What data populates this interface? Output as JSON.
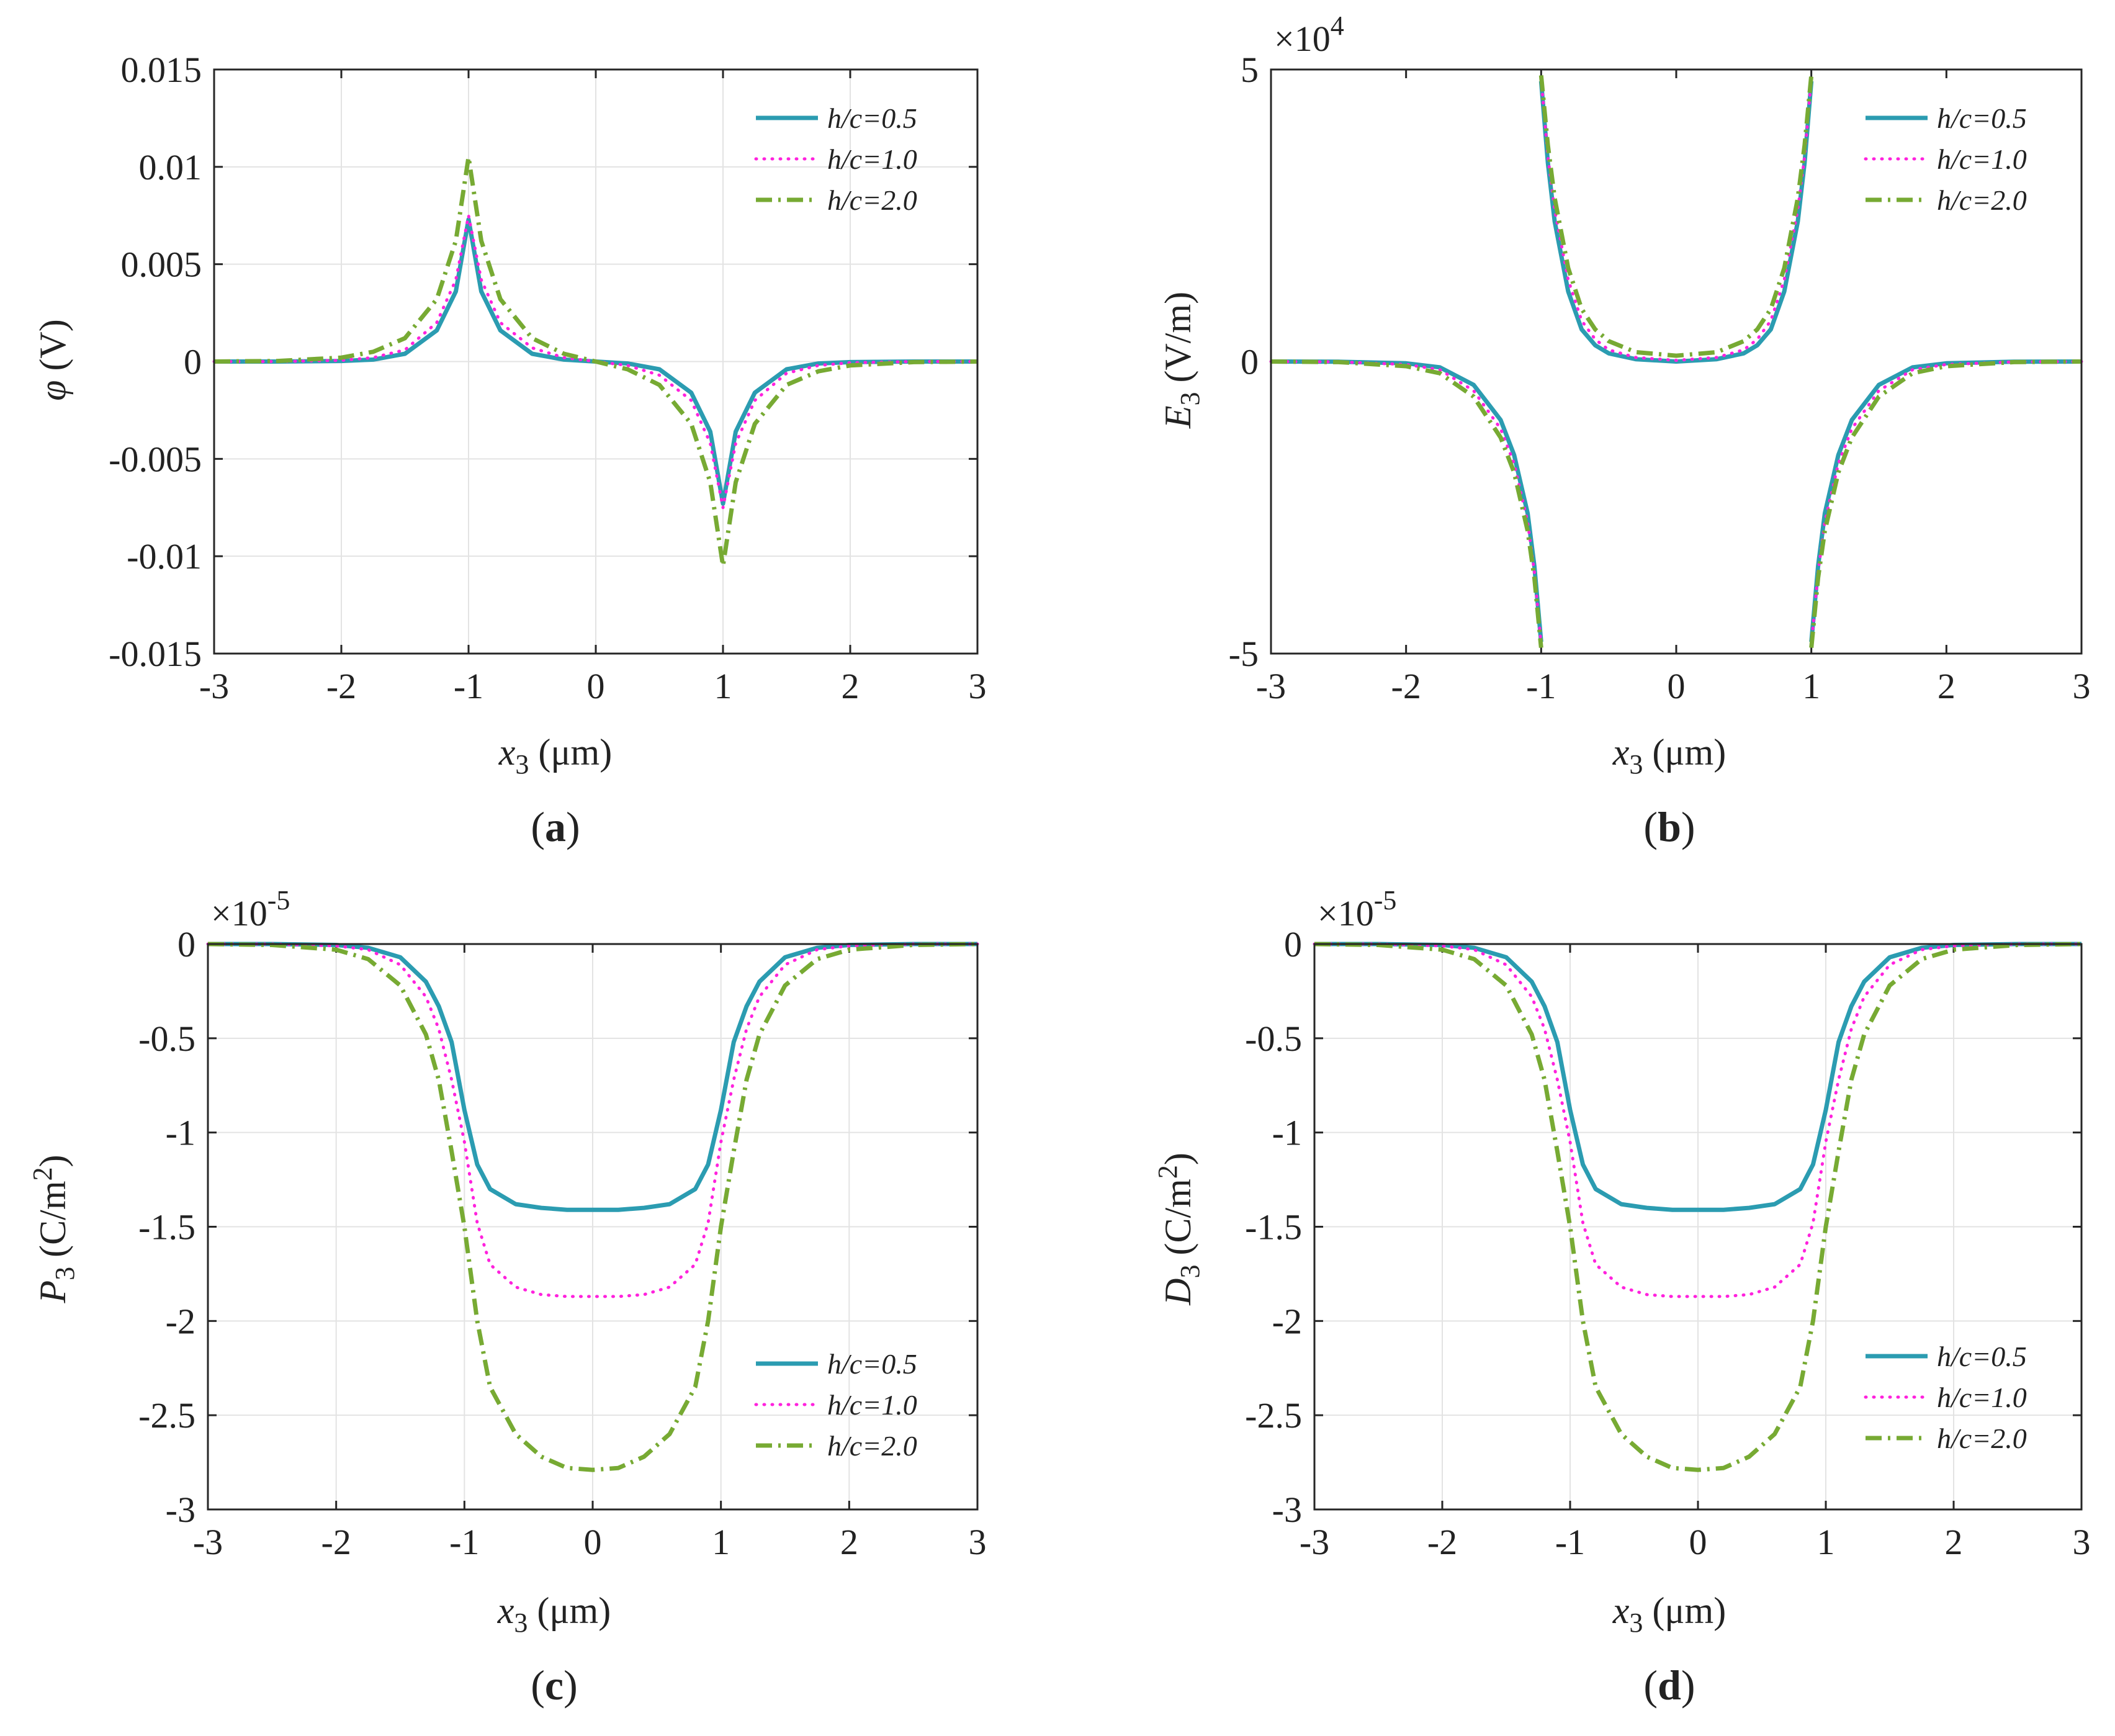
{
  "figure": {
    "legend_labels": [
      "h/c=0.5",
      "h/c=1.0",
      "h/c=2.0"
    ],
    "series_colors": [
      "#2B9CB1",
      "#FF22DD",
      "#77AA33"
    ],
    "series_styles": [
      "solid",
      "dotted",
      "dashdot"
    ]
  },
  "chart_data": [
    {
      "id": "a",
      "type": "line",
      "caption": "(a)",
      "title": "",
      "xlabel": "x3 (μm)",
      "ylabel": "φ (V)",
      "xlim": [
        -3,
        3
      ],
      "ylim": [
        -0.015,
        0.015
      ],
      "xticks": [
        -3,
        -2,
        -1,
        0,
        1,
        2,
        3
      ],
      "xtick_labels": [
        "-3",
        "-2",
        "-1",
        "0",
        "1",
        "2",
        "3"
      ],
      "yticks": [
        -0.015,
        -0.01,
        -0.005,
        0,
        0.005,
        0.01,
        0.015
      ],
      "ytick_labels": [
        "-0.015",
        "-0.01",
        "-0.005",
        "0",
        "0.005",
        "0.01",
        "0.015"
      ],
      "exponent": "",
      "legend_position": "top-right",
      "grid": true,
      "x": [
        -3.0,
        -2.5,
        -2.0,
        -1.75,
        -1.5,
        -1.25,
        -1.1,
        -1.0,
        -0.9,
        -0.75,
        -0.5,
        -0.25,
        0.0,
        0.25,
        0.5,
        0.75,
        0.9,
        1.0,
        1.1,
        1.25,
        1.5,
        1.75,
        2.0,
        2.5,
        3.0
      ],
      "series": [
        {
          "name": "h/c=0.5",
          "values": [
            0,
            0,
            3e-05,
            0.0001,
            0.0004,
            0.0016,
            0.0036,
            0.0073,
            0.0036,
            0.0016,
            0.0004,
            0.0001,
            0,
            -0.0001,
            -0.0004,
            -0.0016,
            -0.0036,
            -0.0073,
            -0.0036,
            -0.0016,
            -0.0004,
            -0.0001,
            -3e-05,
            0,
            0
          ]
        },
        {
          "name": "h/c=1.0",
          "values": [
            0,
            0,
            6e-05,
            0.0002,
            0.0006,
            0.002,
            0.0042,
            0.0075,
            0.0042,
            0.002,
            0.0007,
            0.0002,
            0,
            -0.0002,
            -0.0007,
            -0.002,
            -0.0042,
            -0.0075,
            -0.0042,
            -0.002,
            -0.0006,
            -0.0002,
            -6e-05,
            0,
            0
          ]
        },
        {
          "name": "h/c=2.0",
          "values": [
            0,
            3e-05,
            0.0002,
            0.0005,
            0.0012,
            0.0032,
            0.0062,
            0.0105,
            0.0062,
            0.0032,
            0.0012,
            0.0004,
            0,
            -0.0004,
            -0.0012,
            -0.0032,
            -0.0062,
            -0.0105,
            -0.0062,
            -0.0032,
            -0.0012,
            -0.0005,
            -0.0002,
            -3e-05,
            0
          ]
        }
      ]
    },
    {
      "id": "b",
      "type": "line",
      "caption": "(b)",
      "title": "",
      "xlabel": "x3 (μm)",
      "ylabel": "E3 (V/m)",
      "xlim": [
        -3,
        3
      ],
      "ylim": [
        -5,
        5
      ],
      "xticks": [
        -3,
        -2,
        -1,
        0,
        1,
        2,
        3
      ],
      "xtick_labels": [
        "-3",
        "-2",
        "-1",
        "0",
        "1",
        "2",
        "3"
      ],
      "yticks": [
        -5,
        0,
        5
      ],
      "ytick_labels": [
        "-5",
        "0",
        "5"
      ],
      "exponent": "×10^4",
      "legend_position": "top-right",
      "grid": false,
      "segments_x": [
        [
          -3.0,
          -2.5,
          -2.0,
          -1.75,
          -1.5,
          -1.3,
          -1.2,
          -1.1,
          -1.05,
          -1.0
        ],
        [
          -1.0,
          -0.95,
          -0.9,
          -0.8,
          -0.7,
          -0.6,
          -0.5,
          -0.3,
          0.0,
          0.3,
          0.5,
          0.6,
          0.7,
          0.8,
          0.9,
          0.95,
          1.0
        ],
        [
          1.0,
          1.05,
          1.1,
          1.2,
          1.3,
          1.5,
          1.75,
          2.0,
          2.5,
          3.0
        ]
      ],
      "series": [
        {
          "name": "h/c=0.5",
          "segments": [
            [
              0,
              -0.003,
              -0.03,
              -0.1,
              -0.4,
              -1.0,
              -1.6,
              -2.6,
              -3.5,
              -4.8
            ],
            [
              4.8,
              3.4,
              2.4,
              1.2,
              0.55,
              0.28,
              0.14,
              0.04,
              0.0,
              0.04,
              0.14,
              0.28,
              0.55,
              1.2,
              2.4,
              3.4,
              4.8
            ],
            [
              -4.8,
              -3.5,
              -2.6,
              -1.6,
              -1.0,
              -0.4,
              -0.1,
              -0.03,
              -0.003,
              0
            ]
          ]
        },
        {
          "name": "h/c=1.0",
          "segments": [
            [
              0,
              -0.005,
              -0.05,
              -0.14,
              -0.5,
              -1.15,
              -1.75,
              -2.75,
              -3.6,
              -4.85
            ],
            [
              4.85,
              3.5,
              2.6,
              1.4,
              0.7,
              0.38,
              0.2,
              0.07,
              0.02,
              0.07,
              0.2,
              0.38,
              0.7,
              1.4,
              2.6,
              3.5,
              4.85
            ],
            [
              -4.85,
              -3.6,
              -2.75,
              -1.75,
              -1.15,
              -0.5,
              -0.14,
              -0.05,
              -0.005,
              0
            ]
          ]
        },
        {
          "name": "h/c=2.0",
          "segments": [
            [
              0,
              -0.01,
              -0.08,
              -0.2,
              -0.6,
              -1.3,
              -1.9,
              -2.9,
              -3.7,
              -4.9
            ],
            [
              4.9,
              3.7,
              2.8,
              1.6,
              0.9,
              0.55,
              0.35,
              0.16,
              0.1,
              0.16,
              0.35,
              0.55,
              0.9,
              1.6,
              2.8,
              3.7,
              4.9
            ],
            [
              -4.9,
              -3.7,
              -2.9,
              -1.9,
              -1.3,
              -0.6,
              -0.2,
              -0.08,
              -0.01,
              0
            ]
          ]
        }
      ]
    },
    {
      "id": "c",
      "type": "line",
      "caption": "(c)",
      "title": "",
      "xlabel": "x3 (μm)",
      "ylabel": "P3 (C/m2)",
      "xlim": [
        -3,
        3
      ],
      "ylim": [
        -3,
        0
      ],
      "xticks": [
        -3,
        -2,
        -1,
        0,
        1,
        2,
        3
      ],
      "xtick_labels": [
        "-3",
        "-2",
        "-1",
        "0",
        "1",
        "2",
        "3"
      ],
      "yticks": [
        -3,
        -2.5,
        -2,
        -1.5,
        -1,
        -0.5,
        0
      ],
      "ytick_labels": [
        "-3",
        "-2.5",
        "-2",
        "-1.5",
        "-1",
        "-0.5",
        "0"
      ],
      "exponent": "×10^-5",
      "legend_position": "bottom-right",
      "grid": true,
      "x": [
        -3.0,
        -2.5,
        -2.0,
        -1.75,
        -1.5,
        -1.3,
        -1.2,
        -1.1,
        -1.0,
        -0.9,
        -0.8,
        -0.6,
        -0.4,
        -0.2,
        0.0,
        0.2,
        0.4,
        0.6,
        0.8,
        0.9,
        1.0,
        1.1,
        1.2,
        1.3,
        1.5,
        1.75,
        2.0,
        2.5,
        3.0
      ],
      "series": [
        {
          "name": "h/c=0.5",
          "values": [
            0,
            0,
            -0.005,
            -0.02,
            -0.07,
            -0.2,
            -0.33,
            -0.52,
            -0.88,
            -1.17,
            -1.3,
            -1.38,
            -1.4,
            -1.41,
            -1.41,
            -1.41,
            -1.4,
            -1.38,
            -1.3,
            -1.17,
            -0.88,
            -0.52,
            -0.33,
            -0.2,
            -0.07,
            -0.02,
            -0.005,
            0,
            0
          ]
        },
        {
          "name": "h/c=1.0",
          "values": [
            0,
            0,
            -0.01,
            -0.03,
            -0.11,
            -0.28,
            -0.45,
            -0.72,
            -1.05,
            -1.48,
            -1.7,
            -1.82,
            -1.86,
            -1.87,
            -1.87,
            -1.87,
            -1.86,
            -1.82,
            -1.7,
            -1.48,
            -1.05,
            -0.72,
            -0.45,
            -0.28,
            -0.11,
            -0.03,
            -0.01,
            0,
            0
          ]
        },
        {
          "name": "h/c=2.0",
          "values": [
            0,
            -0.005,
            -0.03,
            -0.08,
            -0.22,
            -0.48,
            -0.72,
            -1.1,
            -1.5,
            -2.0,
            -2.35,
            -2.6,
            -2.72,
            -2.78,
            -2.79,
            -2.78,
            -2.72,
            -2.6,
            -2.35,
            -2.0,
            -1.5,
            -1.1,
            -0.72,
            -0.48,
            -0.22,
            -0.08,
            -0.03,
            -0.005,
            0
          ]
        }
      ]
    },
    {
      "id": "d",
      "type": "line",
      "caption": "(d)",
      "title": "",
      "xlabel": "x3 (μm)",
      "ylabel": "D3 (C/m2)",
      "xlim": [
        -3,
        3
      ],
      "ylim": [
        -3,
        0
      ],
      "xticks": [
        -3,
        -2,
        -1,
        0,
        1,
        2,
        3
      ],
      "xtick_labels": [
        "-3",
        "-2",
        "-1",
        "0",
        "1",
        "2",
        "3"
      ],
      "yticks": [
        -3,
        -2.5,
        -2,
        -1.5,
        -1,
        -0.5,
        0
      ],
      "ytick_labels": [
        "-3",
        "-2.5",
        "-2",
        "-1.5",
        "-1",
        "-0.5",
        "0"
      ],
      "exponent": "×10^-5",
      "legend_position": "bottom-right",
      "grid": true,
      "x": [
        -3.0,
        -2.5,
        -2.0,
        -1.75,
        -1.5,
        -1.3,
        -1.2,
        -1.1,
        -1.0,
        -0.9,
        -0.8,
        -0.6,
        -0.4,
        -0.2,
        0.0,
        0.2,
        0.4,
        0.6,
        0.8,
        0.9,
        1.0,
        1.1,
        1.2,
        1.3,
        1.5,
        1.75,
        2.0,
        2.5,
        3.0
      ],
      "series": [
        {
          "name": "h/c=0.5",
          "values": [
            0,
            0,
            -0.005,
            -0.02,
            -0.07,
            -0.2,
            -0.33,
            -0.52,
            -0.88,
            -1.17,
            -1.3,
            -1.38,
            -1.4,
            -1.41,
            -1.41,
            -1.41,
            -1.4,
            -1.38,
            -1.3,
            -1.17,
            -0.88,
            -0.52,
            -0.33,
            -0.2,
            -0.07,
            -0.02,
            -0.005,
            0,
            0
          ]
        },
        {
          "name": "h/c=1.0",
          "values": [
            0,
            0,
            -0.01,
            -0.03,
            -0.11,
            -0.28,
            -0.45,
            -0.72,
            -1.05,
            -1.48,
            -1.7,
            -1.82,
            -1.86,
            -1.87,
            -1.87,
            -1.87,
            -1.86,
            -1.82,
            -1.7,
            -1.48,
            -1.05,
            -0.72,
            -0.45,
            -0.28,
            -0.11,
            -0.03,
            -0.01,
            0,
            0
          ]
        },
        {
          "name": "h/c=2.0",
          "values": [
            0,
            -0.005,
            -0.03,
            -0.08,
            -0.22,
            -0.48,
            -0.72,
            -1.1,
            -1.5,
            -2.0,
            -2.35,
            -2.6,
            -2.72,
            -2.78,
            -2.79,
            -2.78,
            -2.72,
            -2.6,
            -2.35,
            -2.0,
            -1.5,
            -1.1,
            -0.72,
            -0.48,
            -0.22,
            -0.08,
            -0.03,
            -0.005,
            0
          ]
        }
      ]
    }
  ]
}
